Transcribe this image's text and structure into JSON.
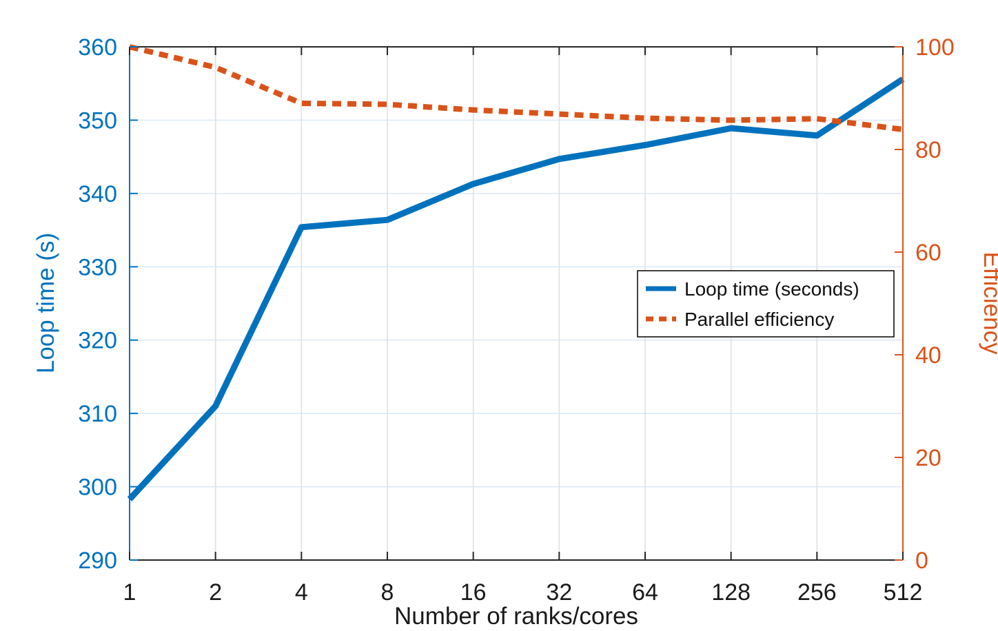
{
  "figure": {
    "background": "#ffffff",
    "xlabel": "Number of ranks/cores",
    "ylabel_left": "Loop time (s)",
    "ylabel_right": "Efficiency",
    "legend": [
      {
        "label": "Loop time (seconds)"
      },
      {
        "label": "Parallel efficiency"
      }
    ],
    "colors": {
      "left_axis": "#0072BD",
      "right_axis": "#D95319",
      "axis_text": "#1a1a1a",
      "box_line": "#262626",
      "grid_horizontal": "#dce9f6",
      "grid_vertical": "#e0e0e0",
      "legend_border": "#000000",
      "legend_bg": "#ffffff"
    }
  },
  "chart_data": {
    "type": "line",
    "x_scale": "log2",
    "title": "",
    "xlabel": "Number of ranks/cores",
    "categories": [
      1,
      2,
      4,
      8,
      16,
      32,
      64,
      128,
      256,
      512
    ],
    "x_tick_labels": [
      "1",
      "2",
      "4",
      "8",
      "16",
      "32",
      "64",
      "128",
      "256",
      "512"
    ],
    "series": [
      {
        "name": "Loop time (seconds)",
        "axis": "left",
        "style": "solid",
        "color": "#0072BD",
        "values": [
          298.3,
          311.0,
          335.4,
          336.4,
          341.3,
          344.7,
          346.6,
          348.9,
          347.9,
          355.6
        ]
      },
      {
        "name": "Parallel efficiency",
        "axis": "right",
        "style": "dotted",
        "color": "#D95319",
        "values": [
          100.0,
          96.0,
          89.0,
          88.8,
          87.7,
          86.9,
          86.1,
          85.7,
          86.0,
          83.9
        ]
      }
    ],
    "left_axis": {
      "label": "Loop time (s)",
      "min": 290,
      "max": 360,
      "ticks": [
        290,
        300,
        310,
        320,
        330,
        340,
        350,
        360
      ]
    },
    "right_axis": {
      "label": "Efficiency",
      "min": 0,
      "max": 100,
      "ticks": [
        0,
        20,
        40,
        60,
        80,
        100
      ]
    },
    "grid": true,
    "legend_position": "center-right"
  }
}
